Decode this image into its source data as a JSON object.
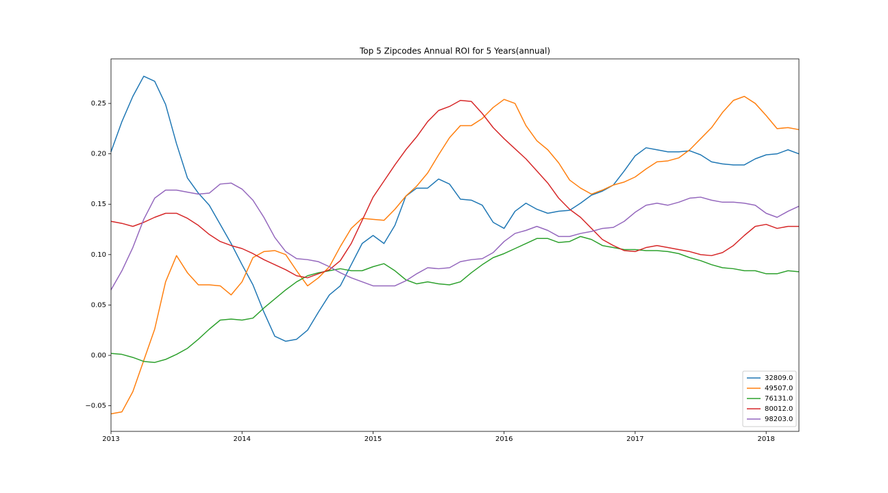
{
  "chart_data": {
    "type": "line",
    "title": "Top 5 Zipcodes Annual ROI for 5 Years(annual)",
    "categories": [
      "2013",
      null,
      null,
      null,
      null,
      null,
      null,
      null,
      null,
      null,
      null,
      null,
      "2014",
      null,
      null,
      null,
      null,
      null,
      null,
      null,
      null,
      null,
      null,
      null,
      "2015",
      null,
      null,
      null,
      null,
      null,
      null,
      null,
      null,
      null,
      null,
      null,
      "2016",
      null,
      null,
      null,
      null,
      null,
      null,
      null,
      null,
      null,
      null,
      null,
      "2017",
      null,
      null,
      null,
      null,
      null,
      null,
      null,
      null,
      null,
      null,
      null,
      "2018",
      null,
      null,
      null
    ],
    "ylim": [
      -0.0754,
      0.2942
    ],
    "yticks": [
      {
        "value": -0.05,
        "label": "−0.05"
      },
      {
        "value": 0,
        "label": "0.00"
      },
      0.05,
      {
        "value": 0.1,
        "label": "0.10"
      },
      0.15,
      {
        "value": 0.2,
        "label": "0.20"
      },
      0.25
    ],
    "legend": "lower right",
    "series": [
      {
        "name": "32809.0",
        "color": "#1f77b4",
        "values": [
          0.202,
          0.232,
          0.257,
          0.277,
          0.272,
          0.249,
          0.21,
          0.176,
          0.161,
          0.149,
          0.13,
          0.111,
          0.09,
          0.07,
          0.043,
          0.019,
          0.014,
          0.016,
          0.025,
          0.043,
          0.06,
          0.069,
          0.09,
          0.111,
          0.119,
          0.111,
          0.129,
          0.158,
          0.166,
          0.166,
          0.175,
          0.17,
          0.155,
          0.154,
          0.149,
          0.132,
          0.126,
          0.143,
          0.151,
          0.145,
          0.141,
          0.143,
          0.144,
          0.151,
          0.159,
          0.163,
          0.169,
          0.183,
          0.198,
          0.206,
          0.204,
          0.202,
          0.202,
          0.203,
          0.199,
          0.192,
          0.19,
          0.189,
          0.189,
          0.195,
          0.199,
          0.2,
          0.204,
          0.2
        ]
      },
      {
        "name": "49507.0",
        "color": "#ff7f0e",
        "values": [
          -0.058,
          -0.056,
          -0.036,
          -0.005,
          0.026,
          0.073,
          0.099,
          0.082,
          0.07,
          0.07,
          0.069,
          0.06,
          0.073,
          0.097,
          0.103,
          0.104,
          0.1,
          0.084,
          0.069,
          0.077,
          0.088,
          0.108,
          0.126,
          0.136,
          0.135,
          0.134,
          0.145,
          0.158,
          0.168,
          0.181,
          0.199,
          0.216,
          0.228,
          0.228,
          0.235,
          0.246,
          0.254,
          0.25,
          0.228,
          0.213,
          0.204,
          0.191,
          0.174,
          0.166,
          0.16,
          0.164,
          0.169,
          0.172,
          0.177,
          0.185,
          0.192,
          0.193,
          0.196,
          0.204,
          0.215,
          0.226,
          0.241,
          0.253,
          0.257,
          0.25,
          0.238,
          0.225,
          0.226,
          0.224
        ]
      },
      {
        "name": "76131.0",
        "color": "#2ca02c",
        "values": [
          0.002,
          0.001,
          -0.002,
          -0.006,
          -0.007,
          -0.004,
          0.001,
          0.007,
          0.016,
          0.026,
          0.035,
          0.036,
          0.035,
          0.037,
          0.047,
          0.056,
          0.065,
          0.073,
          0.079,
          0.082,
          0.084,
          0.086,
          0.084,
          0.084,
          0.088,
          0.091,
          0.084,
          0.075,
          0.071,
          0.073,
          0.071,
          0.07,
          0.073,
          0.082,
          0.09,
          0.097,
          0.101,
          0.106,
          0.111,
          0.116,
          0.116,
          0.112,
          0.113,
          0.118,
          0.115,
          0.109,
          0.107,
          0.105,
          0.105,
          0.104,
          0.104,
          0.103,
          0.101,
          0.097,
          0.094,
          0.09,
          0.087,
          0.086,
          0.084,
          0.084,
          0.081,
          0.081,
          0.084,
          0.083
        ]
      },
      {
        "name": "80012.0",
        "color": "#d62728",
        "values": [
          0.133,
          0.131,
          0.128,
          0.132,
          0.137,
          0.141,
          0.141,
          0.136,
          0.129,
          0.12,
          0.113,
          0.109,
          0.106,
          0.101,
          0.095,
          0.09,
          0.085,
          0.079,
          0.077,
          0.081,
          0.085,
          0.094,
          0.111,
          0.134,
          0.157,
          0.173,
          0.189,
          0.204,
          0.217,
          0.232,
          0.243,
          0.247,
          0.253,
          0.252,
          0.24,
          0.226,
          0.215,
          0.205,
          0.195,
          0.183,
          0.171,
          0.156,
          0.145,
          0.137,
          0.126,
          0.115,
          0.109,
          0.104,
          0.103,
          0.107,
          0.109,
          0.107,
          0.105,
          0.103,
          0.1,
          0.099,
          0.102,
          0.109,
          0.119,
          0.128,
          0.13,
          0.126,
          0.128,
          0.128
        ]
      },
      {
        "name": "98203.0",
        "color": "#9467bd",
        "values": [
          0.065,
          0.084,
          0.107,
          0.135,
          0.156,
          0.164,
          0.164,
          0.162,
          0.16,
          0.161,
          0.17,
          0.171,
          0.165,
          0.154,
          0.137,
          0.117,
          0.103,
          0.096,
          0.095,
          0.093,
          0.088,
          0.082,
          0.077,
          0.073,
          0.069,
          0.069,
          0.069,
          0.074,
          0.081,
          0.087,
          0.086,
          0.087,
          0.093,
          0.095,
          0.096,
          0.102,
          0.113,
          0.121,
          0.124,
          0.128,
          0.124,
          0.118,
          0.118,
          0.121,
          0.123,
          0.126,
          0.127,
          0.133,
          0.142,
          0.149,
          0.151,
          0.149,
          0.152,
          0.156,
          0.157,
          0.154,
          0.152,
          0.152,
          0.151,
          0.149,
          0.141,
          0.137,
          0.143,
          0.148
        ]
      }
    ]
  }
}
